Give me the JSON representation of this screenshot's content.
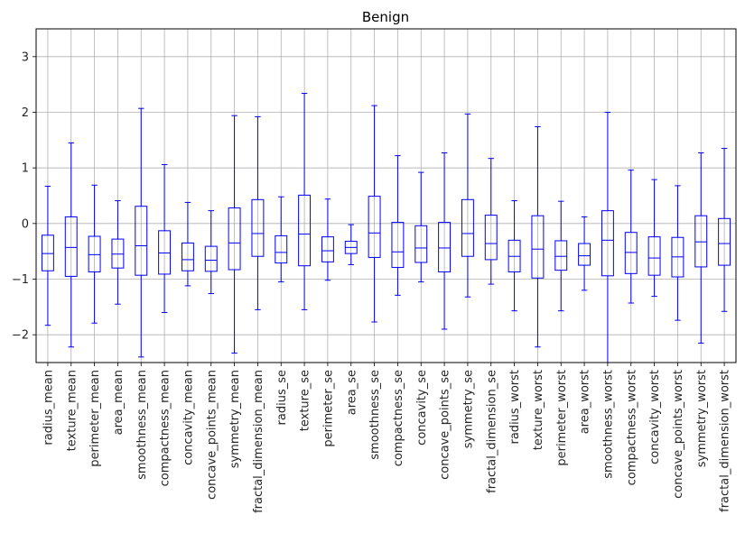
{
  "chart_data": {
    "type": "box",
    "title": "Benign",
    "xlabel": "",
    "ylabel": "",
    "ylim": [
      -2.5,
      3.5
    ],
    "yticks": [
      -2,
      -1,
      0,
      1,
      2,
      3
    ],
    "ytick_labels": [
      "−2",
      "−1",
      "0",
      "1",
      "2",
      "3"
    ],
    "grid": true,
    "box_color": "#0000ff",
    "grid_color": "#b0b0b0",
    "categories": [
      "radius_mean",
      "texture_mean",
      "perimeter_mean",
      "area_mean",
      "smoothness_mean",
      "compactness_mean",
      "concavity_mean",
      "concave_points_mean",
      "symmetry_mean",
      "fractal_dimension_mean",
      "radius_se",
      "texture_se",
      "perimeter_se",
      "area_se",
      "smoothness_se",
      "compactness_se",
      "concavity_se",
      "concave_points_se",
      "symmetry_se",
      "fractal_dimension_se",
      "radius_worst",
      "texture_worst",
      "perimeter_worst",
      "area_worst",
      "smoothness_worst",
      "compactness_worst",
      "concavity_worst",
      "concave_points_worst",
      "symmetry_worst",
      "fractal_dimension_worst"
    ],
    "boxes": [
      {
        "whislo": -1.83,
        "q1": -0.85,
        "med": -0.54,
        "q3": -0.21,
        "whishi": 0.67
      },
      {
        "whislo": -2.22,
        "q1": -0.95,
        "med": -0.43,
        "q3": 0.12,
        "whishi": 1.45
      },
      {
        "whislo": -1.79,
        "q1": -0.87,
        "med": -0.56,
        "q3": -0.23,
        "whishi": 0.69
      },
      {
        "whislo": -1.45,
        "q1": -0.8,
        "med": -0.55,
        "q3": -0.28,
        "whishi": 0.41
      },
      {
        "whislo": -2.4,
        "q1": -0.93,
        "med": -0.4,
        "q3": 0.31,
        "whishi": 2.07
      },
      {
        "whislo": -1.6,
        "q1": -0.91,
        "med": -0.53,
        "q3": -0.13,
        "whishi": 1.06
      },
      {
        "whislo": -1.12,
        "q1": -0.85,
        "med": -0.65,
        "q3": -0.35,
        "whishi": 0.38
      },
      {
        "whislo": -1.26,
        "q1": -0.86,
        "med": -0.66,
        "q3": -0.41,
        "whishi": 0.23
      },
      {
        "whislo": -2.33,
        "q1": -0.83,
        "med": -0.35,
        "q3": 0.28,
        "whishi": 1.94
      },
      {
        "whislo": -1.55,
        "q1": -0.59,
        "med": -0.18,
        "q3": 0.43,
        "whishi": 1.92
      },
      {
        "whislo": -1.05,
        "q1": -0.71,
        "med": -0.52,
        "q3": -0.22,
        "whishi": 0.48
      },
      {
        "whislo": -1.55,
        "q1": -0.76,
        "med": -0.19,
        "q3": 0.51,
        "whishi": 2.34
      },
      {
        "whislo": -1.02,
        "q1": -0.69,
        "med": -0.49,
        "q3": -0.24,
        "whishi": 0.44
      },
      {
        "whislo": -0.74,
        "q1": -0.54,
        "med": -0.43,
        "q3": -0.32,
        "whishi": -0.02
      },
      {
        "whislo": -1.77,
        "q1": -0.61,
        "med": -0.17,
        "q3": 0.49,
        "whishi": 2.12
      },
      {
        "whislo": -1.29,
        "q1": -0.79,
        "med": -0.51,
        "q3": 0.02,
        "whishi": 1.22
      },
      {
        "whislo": -1.05,
        "q1": -0.7,
        "med": -0.44,
        "q3": -0.04,
        "whishi": 0.92
      },
      {
        "whislo": -1.9,
        "q1": -0.87,
        "med": -0.44,
        "q3": 0.02,
        "whishi": 1.27
      },
      {
        "whislo": -1.32,
        "q1": -0.59,
        "med": -0.18,
        "q3": 0.43,
        "whishi": 1.97
      },
      {
        "whislo": -1.09,
        "q1": -0.65,
        "med": -0.36,
        "q3": 0.15,
        "whishi": 1.17
      },
      {
        "whislo": -1.57,
        "q1": -0.87,
        "med": -0.59,
        "q3": -0.3,
        "whishi": 0.41
      },
      {
        "whislo": -2.22,
        "q1": -0.98,
        "med": -0.46,
        "q3": 0.14,
        "whishi": 1.74
      },
      {
        "whislo": -1.57,
        "q1": -0.84,
        "med": -0.59,
        "q3": -0.31,
        "whishi": 0.4
      },
      {
        "whislo": -1.2,
        "q1": -0.75,
        "med": -0.58,
        "q3": -0.36,
        "whishi": 0.12
      },
      {
        "whislo": -2.5,
        "q1": -0.94,
        "med": -0.3,
        "q3": 0.23,
        "whishi": 2.0
      },
      {
        "whislo": -1.43,
        "q1": -0.9,
        "med": -0.52,
        "q3": -0.16,
        "whishi": 0.96
      },
      {
        "whislo": -1.31,
        "q1": -0.93,
        "med": -0.62,
        "q3": -0.24,
        "whishi": 0.79
      },
      {
        "whislo": -1.74,
        "q1": -0.96,
        "med": -0.6,
        "q3": -0.25,
        "whishi": 0.68
      },
      {
        "whislo": -2.15,
        "q1": -0.78,
        "med": -0.33,
        "q3": 0.14,
        "whishi": 1.27
      },
      {
        "whislo": -1.58,
        "q1": -0.75,
        "med": -0.36,
        "q3": 0.09,
        "whishi": 1.35
      }
    ]
  }
}
